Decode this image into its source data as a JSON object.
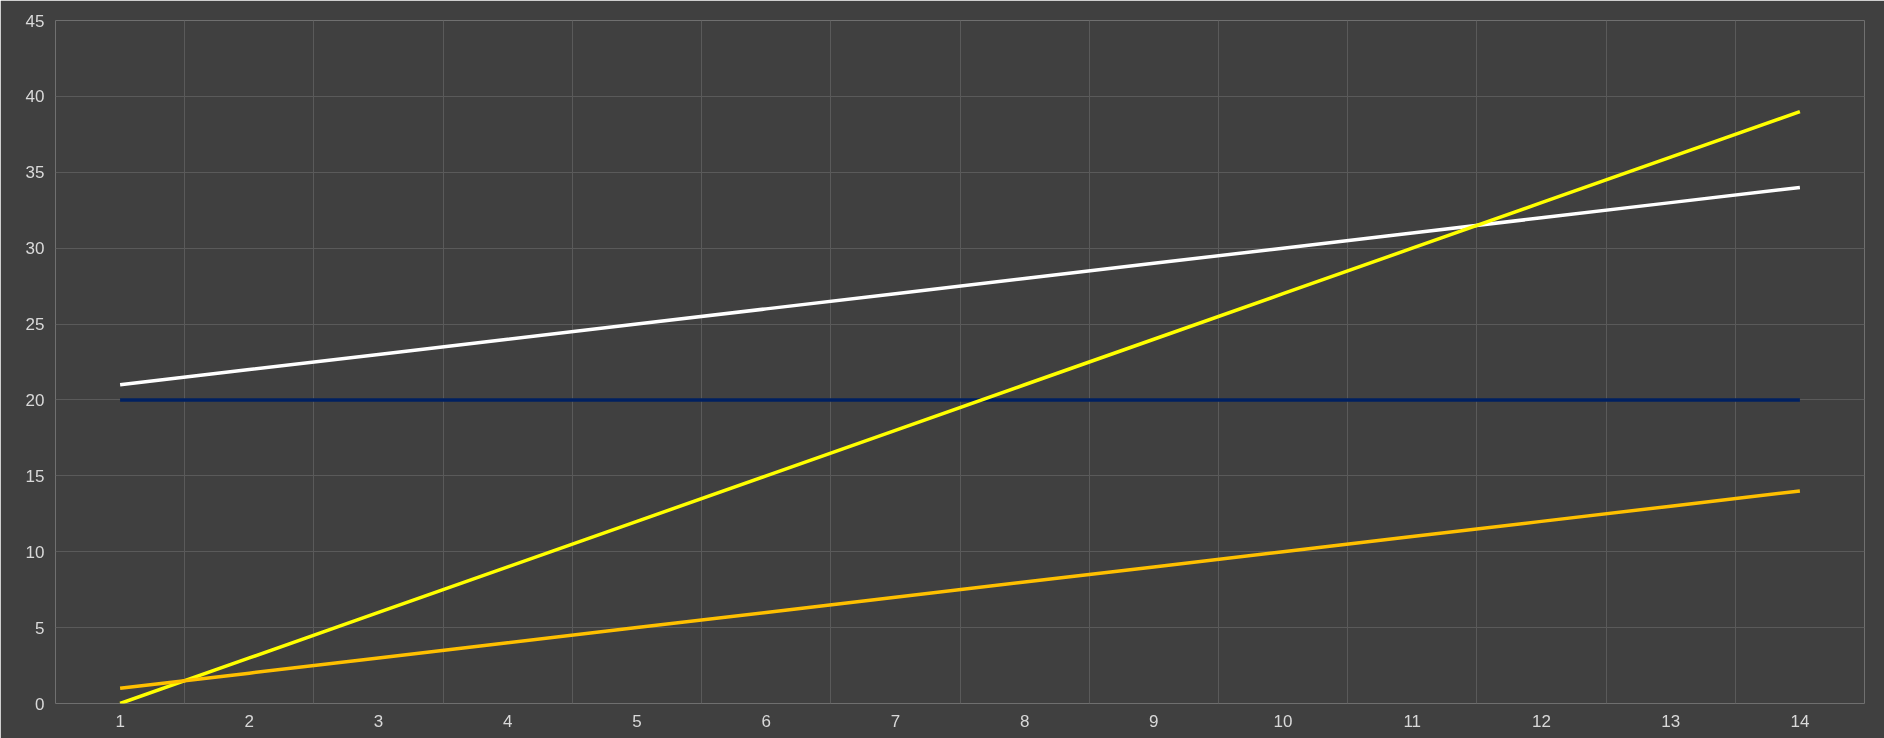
{
  "chart_data": {
    "type": "line",
    "categories": [
      "1",
      "2",
      "3",
      "4",
      "5",
      "6",
      "7",
      "8",
      "9",
      "10",
      "11",
      "12",
      "13",
      "14"
    ],
    "series": [
      {
        "color": "#ffffff",
        "values": [
          21,
          22,
          23,
          24,
          25,
          26,
          27,
          28,
          29,
          30,
          31,
          32,
          33,
          34
        ]
      },
      {
        "color": "#002060",
        "values": [
          20,
          20,
          20,
          20,
          20,
          20,
          20,
          20,
          20,
          20,
          20,
          20,
          20,
          20
        ]
      },
      {
        "color": "#ffff00",
        "values": [
          0,
          3,
          6,
          9,
          12,
          15,
          18,
          21,
          24,
          27,
          30,
          33,
          36,
          39
        ]
      },
      {
        "color": "#ffc000",
        "values": [
          1,
          2,
          3,
          4,
          5,
          6,
          7,
          8,
          9,
          10,
          11,
          12,
          13,
          14
        ]
      }
    ],
    "ylim": [
      0,
      45
    ],
    "yticks": [
      0,
      5,
      10,
      15,
      20,
      25,
      30,
      35,
      40,
      45
    ],
    "grid": true,
    "marker": "none",
    "line_style": "solid"
  }
}
